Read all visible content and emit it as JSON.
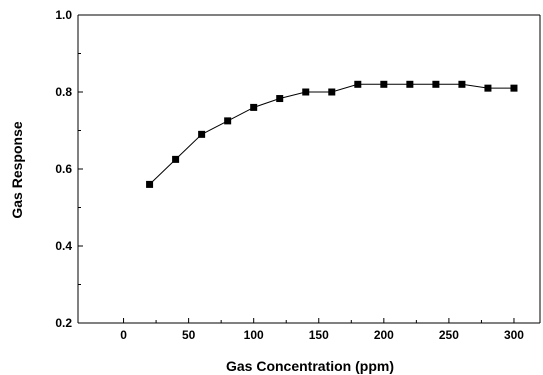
{
  "chart_data": {
    "type": "line",
    "title": "",
    "xlabel": "Gas Concentration (ppm)",
    "ylabel": "Gas Response",
    "xlim": [
      -35,
      320
    ],
    "ylim": [
      0.2,
      1.0
    ],
    "x_ticks": [
      0,
      50,
      100,
      150,
      200,
      250,
      300
    ],
    "y_ticks": [
      0.2,
      0.4,
      0.6,
      0.8,
      1.0
    ],
    "y_tick_labels": [
      "0.2",
      "0.4",
      "0.6",
      "0.8",
      "1.0"
    ],
    "grid": false,
    "legend": "none",
    "marker": "square",
    "color": "#000000",
    "series": [
      {
        "x": [
          20,
          40,
          60,
          80,
          100,
          120,
          140,
          160,
          180,
          200,
          220,
          240,
          260,
          280,
          300
        ],
        "y": [
          0.56,
          0.625,
          0.69,
          0.725,
          0.76,
          0.783,
          0.8,
          0.8,
          0.82,
          0.82,
          0.82,
          0.82,
          0.82,
          0.81,
          0.81
        ]
      }
    ]
  }
}
